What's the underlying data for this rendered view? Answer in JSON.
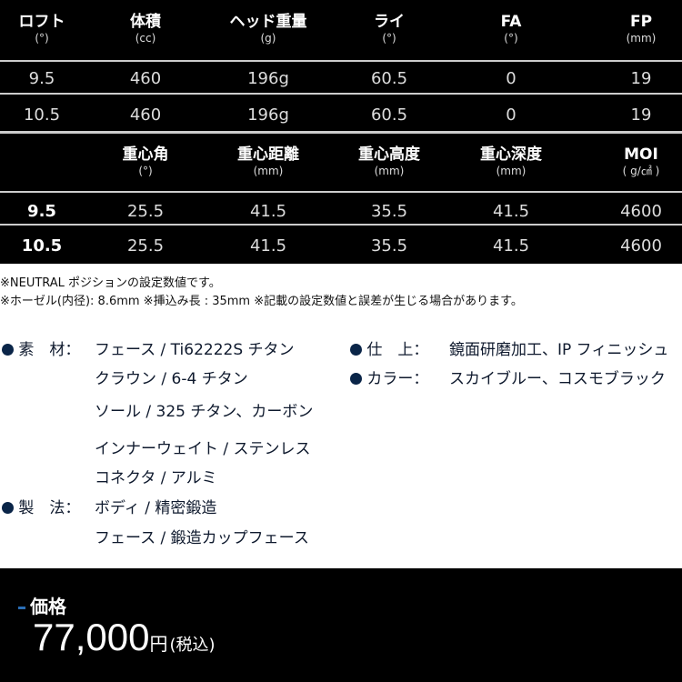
{
  "table1": {
    "headers": [
      {
        "label": "ロフト",
        "unit": "(°)"
      },
      {
        "label": "体積",
        "unit": "(cc)"
      },
      {
        "label": "ヘッド重量",
        "unit": "(g)"
      },
      {
        "label": "ライ",
        "unit": "(°)"
      },
      {
        "label": "FA",
        "unit": "(°)"
      },
      {
        "label": "FP",
        "unit": "(mm)"
      }
    ],
    "rows": [
      [
        "9.5",
        "460",
        "196g",
        "60.5",
        "0",
        "19"
      ],
      [
        "10.5",
        "460",
        "196g",
        "60.5",
        "0",
        "19"
      ]
    ]
  },
  "table2": {
    "headers": [
      {
        "label": "",
        "unit": ""
      },
      {
        "label": "重心角",
        "unit": "(°)"
      },
      {
        "label": "重心距離",
        "unit": "(mm)"
      },
      {
        "label": "重心高度",
        "unit": "(mm)"
      },
      {
        "label": "重心深度",
        "unit": "(mm)"
      },
      {
        "label": "MOI",
        "unit": "( g/㎠ )"
      }
    ],
    "rows": [
      [
        "9.5",
        "25.5",
        "41.5",
        "35.5",
        "41.5",
        "4600"
      ],
      [
        "10.5",
        "25.5",
        "41.5",
        "35.5",
        "41.5",
        "4600"
      ]
    ]
  },
  "notes": [
    "※NEUTRAL ポジションの設定数値です。",
    "※ホーゼル(内径): 8.6mm  ※挿込み長 : 35mm  ※記載の設定数値と誤差が生じる場合があります。"
  ],
  "specs": {
    "material": {
      "label": "素　材：",
      "lines": [
        "フェース / Ti62222S チタン",
        "クラウン / 6-4 チタン",
        "ソール / 325 チタン、カーボン",
        "インナーウェイト / ステンレス",
        "コネクタ / アルミ"
      ]
    },
    "method": {
      "label": "製　法：",
      "lines": [
        "ボディ / 精密鍛造",
        "フェース / 鍛造カップフェース"
      ]
    },
    "finish": {
      "label": "仕　上：",
      "value": "鏡面研磨加工、IP フィニッシュ"
    },
    "color": {
      "label": "カラー：",
      "value": "スカイブルー、コスモブラック"
    }
  },
  "price": {
    "label": "価格",
    "value": "77,000",
    "currency": "円",
    "tax": "(税込)"
  },
  "colors": {
    "bullet": "#0a2548",
    "accent": "#2a6db5"
  }
}
